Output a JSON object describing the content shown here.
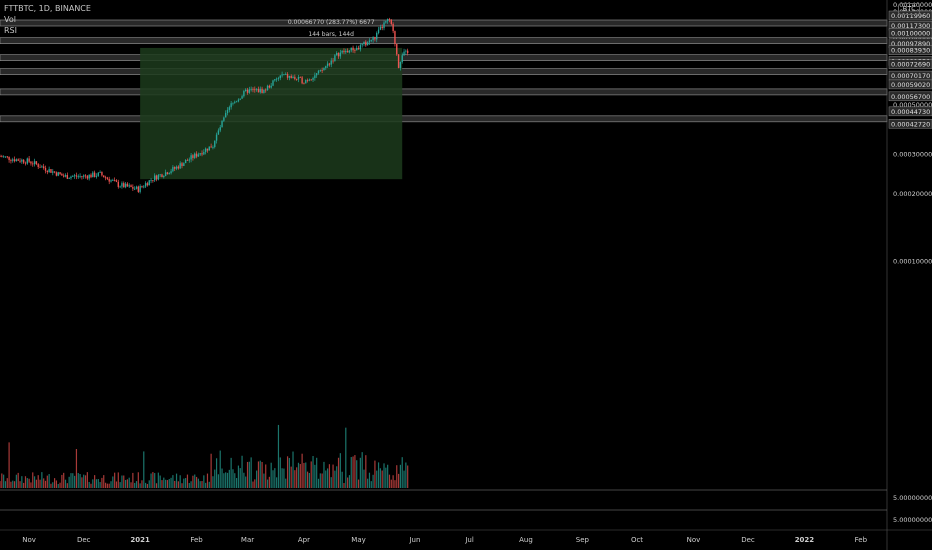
{
  "header": {
    "symbol_line": "FTTBTC, 1D, BINANCE",
    "indicators": [
      "Vol",
      "RSI"
    ],
    "currency_label": "BTC"
  },
  "measure": {
    "line1": "0.00066770 (283.77%) 6677",
    "line2": "144 bars, 144d"
  },
  "colors": {
    "background": "#000000",
    "up": "#26a69a",
    "down": "#ef5350",
    "zone": "#2e2e2e",
    "measure_fill": "#1c3b1c",
    "axis_text": "#cfcfcf"
  },
  "chart_data": {
    "type": "candlestick",
    "title": "FTTBTC, 1D, BINANCE",
    "ylim": [
      9.5e-06,
      0.0014
    ],
    "y_ticks": [
      "0.00140000",
      "0.00130000",
      "0.00110000",
      "0.00100000",
      "0.00090000",
      "0.00050000",
      "0.00030000",
      "0.00020000",
      "0.00010000"
    ],
    "y_tick_values": [
      0.0014,
      0.0013,
      0.0011,
      0.001,
      0.0009,
      0.0005,
      0.0003,
      0.0002,
      0.0001
    ],
    "x_ticks": [
      "Nov",
      "Dec",
      "2021",
      "Feb",
      "Mar",
      "Apr",
      "May",
      "Jun",
      "Jul",
      "Aug",
      "Sep",
      "Oct",
      "Nov",
      "Dec",
      "2022",
      "Feb"
    ],
    "x_tick_dates": [
      "2020-11-01",
      "2020-12-01",
      "2021-01-01",
      "2021-02-01",
      "2021-03-01",
      "2021-04-01",
      "2021-05-01",
      "2021-06-01",
      "2021-07-01",
      "2021-08-01",
      "2021-09-01",
      "2021-10-01",
      "2021-11-01",
      "2021-12-01",
      "2022-01-01",
      "2022-02-01"
    ],
    "zones": [
      {
        "top": "0.00119960",
        "bottom": "0.00117300",
        "top_value": 0.0011996,
        "bottom_value": 0.001173
      },
      {
        "top": "0.00100000",
        "bottom": "0.00097890",
        "top_value": 0.001,
        "bottom_value": 0.0009789
      },
      {
        "top": "0.00083930",
        "bottom": "0.00081550",
        "top_value": 0.0008393,
        "bottom_value": 0.0008155
      },
      {
        "top": "0.00072690",
        "bottom": "0.00070170",
        "top_value": 0.0007269,
        "bottom_value": 0.0007017
      },
      {
        "top": "0.00059020",
        "bottom": "0.00056700",
        "top_value": 0.0005902,
        "bottom_value": 0.000567
      },
      {
        "top": "0.00044730",
        "bottom": "0.00042720",
        "top_value": 0.0004473,
        "bottom_value": 0.0004272
      }
    ],
    "measure_box": {
      "start": "2021-01-01",
      "end": "2021-05-25",
      "low": 0.000233,
      "high": 0.0009
    },
    "price_points": [
      [
        "2020-10-16",
        0.000295
      ],
      [
        "2020-10-25",
        0.000285
      ],
      [
        "2020-11-01",
        0.00028
      ],
      [
        "2020-11-10",
        0.00026
      ],
      [
        "2020-11-20",
        0.00024
      ],
      [
        "2020-12-01",
        0.00024
      ],
      [
        "2020-12-10",
        0.000245
      ],
      [
        "2020-12-20",
        0.00022
      ],
      [
        "2020-12-31",
        0.00021
      ],
      [
        "2021-01-08",
        0.000235
      ],
      [
        "2021-01-20",
        0.00026
      ],
      [
        "2021-02-01",
        0.0003
      ],
      [
        "2021-02-10",
        0.00033
      ],
      [
        "2021-02-20",
        0.0005
      ],
      [
        "2021-03-01",
        0.00058
      ],
      [
        "2021-03-10",
        0.00058
      ],
      [
        "2021-03-20",
        0.00068
      ],
      [
        "2021-04-01",
        0.00064
      ],
      [
        "2021-04-10",
        0.0007
      ],
      [
        "2021-04-20",
        0.00085
      ],
      [
        "2021-05-01",
        0.0009
      ],
      [
        "2021-05-10",
        0.001
      ],
      [
        "2021-05-15",
        0.00115
      ],
      [
        "2021-05-18",
        0.0012
      ],
      [
        "2021-05-20",
        0.00105
      ],
      [
        "2021-05-23",
        0.00075
      ],
      [
        "2021-05-25",
        0.00085
      ],
      [
        "2021-05-28",
        0.00085
      ]
    ],
    "volume_axis_labels": [
      "5.00000000",
      "5.00000000"
    ]
  }
}
